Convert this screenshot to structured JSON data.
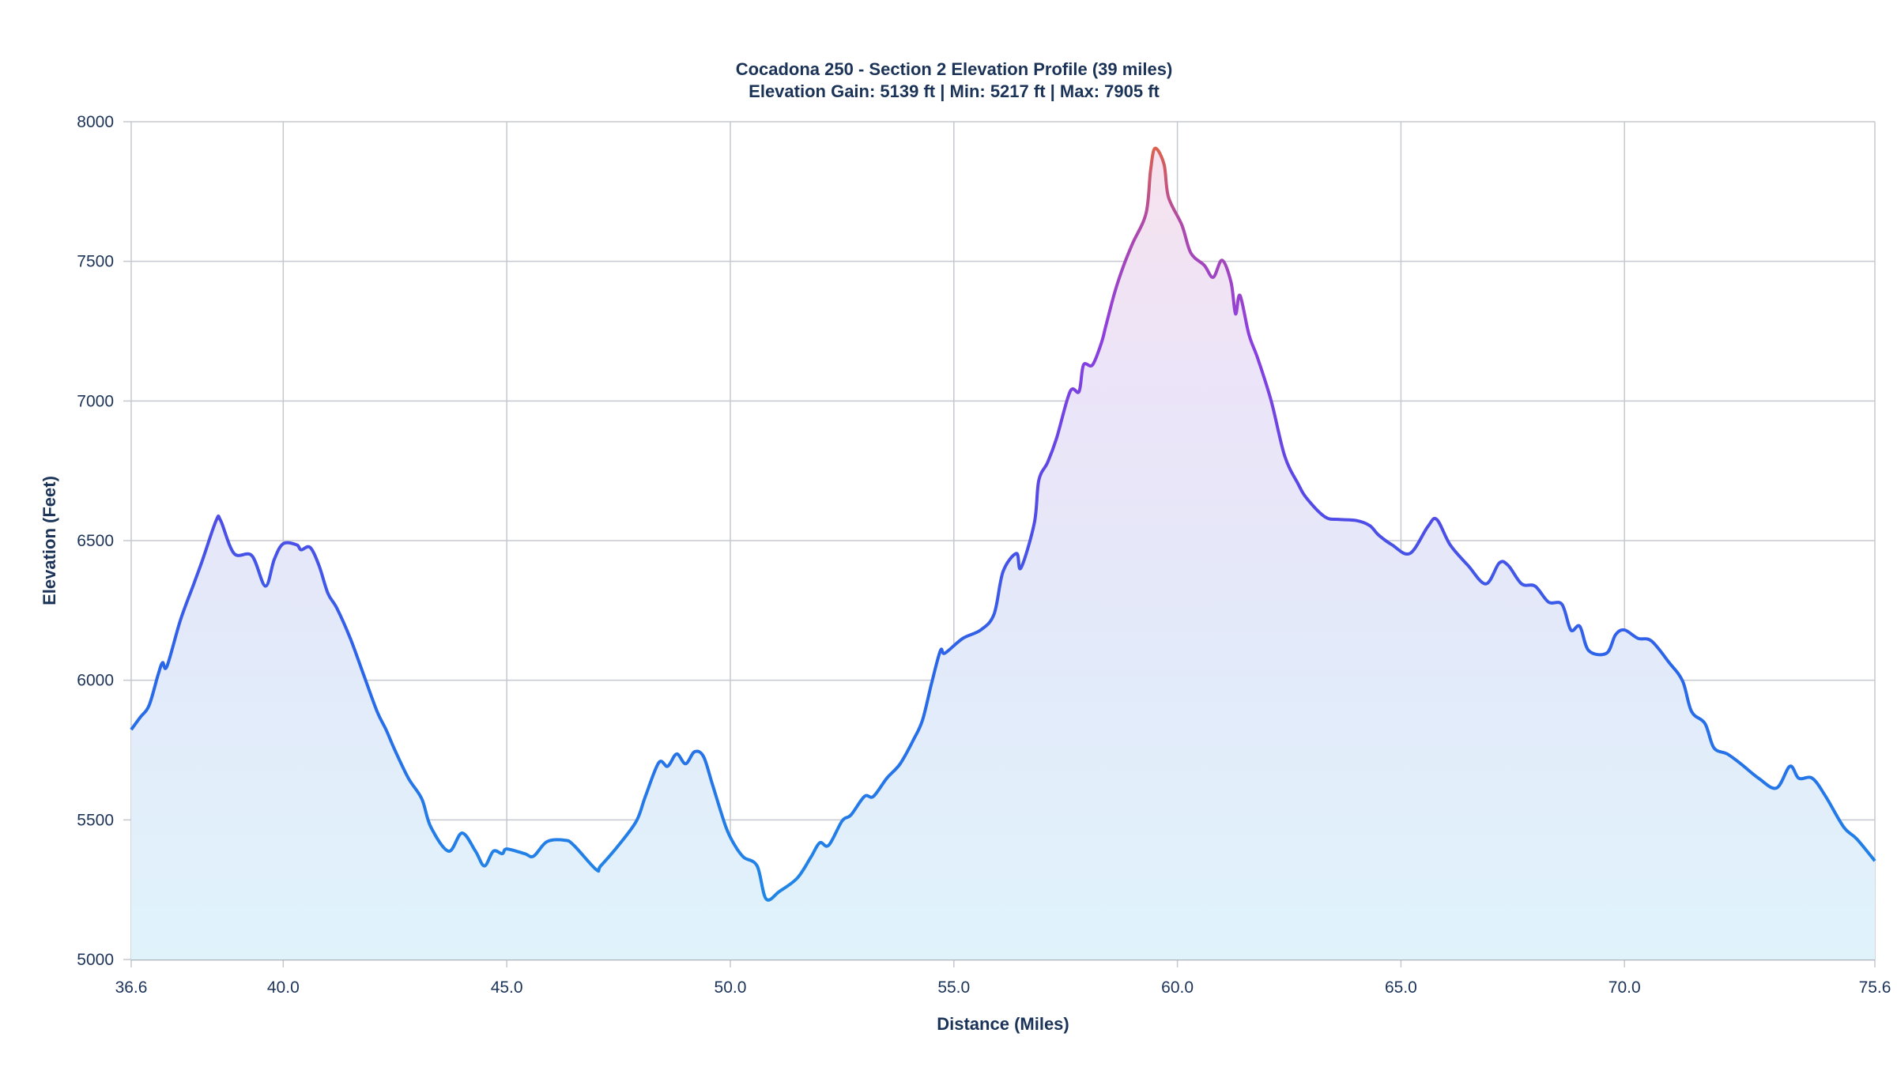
{
  "chart_data": {
    "type": "area",
    "title": "Cocadona 250 - Section 2 Elevation Profile (39 miles)",
    "subtitle": "Elevation Gain: 5139 ft | Min: 5217 ft | Max: 7905 ft",
    "xlabel": "Distance (Miles)",
    "ylabel": "Elevation (Feet)",
    "xlim": [
      36.6,
      75.6
    ],
    "ylim": [
      5000,
      8000
    ],
    "x_ticks": [
      "36.6",
      "40.0",
      "45.0",
      "50.0",
      "55.0",
      "60.0",
      "65.0",
      "70.0",
      "75.6"
    ],
    "y_ticks": [
      "5000",
      "5500",
      "6000",
      "6500",
      "7000",
      "7500",
      "8000"
    ],
    "grid": true,
    "colors": {
      "low": "#1e8fe6",
      "mid": "#5a4ae6",
      "high_purple": "#9b40d0",
      "peak": "#ea6a2e",
      "fill_low": "#e0f3fb",
      "fill_high": "#f8e2ec",
      "grid": "#c5c9cf"
    },
    "x": [
      36.6,
      36.8,
      37.0,
      37.2,
      37.3,
      37.4,
      37.7,
      38.0,
      38.2,
      38.5,
      38.6,
      38.9,
      39.3,
      39.6,
      39.8,
      40.0,
      40.3,
      40.4,
      40.6,
      40.8,
      41.0,
      41.2,
      41.5,
      41.8,
      42.1,
      42.3,
      42.5,
      42.8,
      43.1,
      43.3,
      43.7,
      44.0,
      44.3,
      44.5,
      44.7,
      44.9,
      45.0,
      45.4,
      45.6,
      45.9,
      46.3,
      46.5,
      47.0,
      47.1,
      47.5,
      47.9,
      48.1,
      48.4,
      48.6,
      48.8,
      49.0,
      49.2,
      49.4,
      49.6,
      49.9,
      50.1,
      50.3,
      50.6,
      50.8,
      51.1,
      51.5,
      51.8,
      52.0,
      52.2,
      52.5,
      52.7,
      53.0,
      53.2,
      53.5,
      53.8,
      54.1,
      54.3,
      54.5,
      54.7,
      54.8,
      55.2,
      55.6,
      55.9,
      56.1,
      56.4,
      56.5,
      56.8,
      56.9,
      57.1,
      57.3,
      57.6,
      57.8,
      57.9,
      58.1,
      58.3,
      58.4,
      58.6,
      58.8,
      59.0,
      59.3,
      59.4,
      59.5,
      59.7,
      59.8,
      60.1,
      60.3,
      60.6,
      60.8,
      61.0,
      61.2,
      61.3,
      61.4,
      61.6,
      61.8,
      62.1,
      62.4,
      62.7,
      62.9,
      63.3,
      63.6,
      64.0,
      64.3,
      64.5,
      64.8,
      65.2,
      65.6,
      65.8,
      66.1,
      66.5,
      66.9,
      67.2,
      67.4,
      67.7,
      68.0,
      68.3,
      68.6,
      68.8,
      69.0,
      69.2,
      69.6,
      69.8,
      70.0,
      70.3,
      70.6,
      71.0,
      71.3,
      71.5,
      71.8,
      72.0,
      72.3,
      72.6,
      73.0,
      73.4,
      73.7,
      73.9,
      74.2,
      74.5,
      74.9,
      75.2,
      75.6
    ],
    "y": [
      5823,
      5867,
      5910,
      6019,
      6063,
      6050,
      6215,
      6345,
      6433,
      6572,
      6572,
      6454,
      6446,
      6337,
      6433,
      6489,
      6485,
      6467,
      6476,
      6411,
      6311,
      6258,
      6150,
      6019,
      5888,
      5823,
      5749,
      5649,
      5575,
      5475,
      5388,
      5453,
      5388,
      5335,
      5388,
      5379,
      5396,
      5379,
      5370,
      5422,
      5427,
      5409,
      5322,
      5335,
      5409,
      5496,
      5584,
      5705,
      5692,
      5736,
      5701,
      5744,
      5727,
      5627,
      5475,
      5409,
      5366,
      5335,
      5217,
      5244,
      5292,
      5366,
      5418,
      5409,
      5496,
      5518,
      5584,
      5584,
      5649,
      5701,
      5788,
      5858,
      5988,
      6106,
      6097,
      6150,
      6180,
      6237,
      6389,
      6454,
      6402,
      6563,
      6716,
      6781,
      6868,
      7034,
      7034,
      7129,
      7129,
      7208,
      7269,
      7390,
      7486,
      7565,
      7673,
      7826,
      7905,
      7848,
      7730,
      7630,
      7530,
      7486,
      7443,
      7504,
      7425,
      7312,
      7378,
      7238,
      7151,
      6999,
      6803,
      6703,
      6650,
      6585,
      6576,
      6572,
      6554,
      6520,
      6485,
      6454,
      6550,
      6576,
      6485,
      6411,
      6345,
      6420,
      6411,
      6345,
      6337,
      6280,
      6272,
      6180,
      6193,
      6106,
      6097,
      6163,
      6180,
      6150,
      6141,
      6063,
      5997,
      5888,
      5845,
      5758,
      5736,
      5701,
      5649,
      5614,
      5692,
      5649,
      5649,
      5584,
      5475,
      5431,
      5353
    ]
  }
}
